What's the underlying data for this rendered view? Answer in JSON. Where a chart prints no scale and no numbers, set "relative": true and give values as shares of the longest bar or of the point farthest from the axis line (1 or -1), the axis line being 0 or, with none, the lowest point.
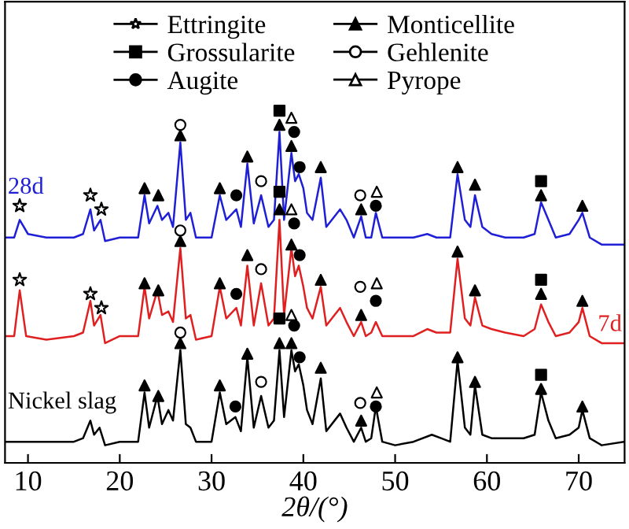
{
  "chart_data": {
    "type": "line",
    "relative": true,
    "xlabel": "2θ/(°)",
    "xlim": [
      7.5,
      75
    ],
    "xticks": [
      10,
      20,
      30,
      40,
      50,
      60,
      70
    ],
    "legend": "top",
    "grid": false,
    "line_style": "solid",
    "series": [
      {
        "name": "28d",
        "color": "#1f1fd6",
        "x": [
          7.5,
          8.5,
          9.1,
          10,
          12,
          15,
          16,
          16.8,
          17.2,
          17.9,
          18.4,
          20,
          22,
          22.7,
          23.2,
          24.1,
          24.6,
          25.3,
          25.8,
          26.6,
          27.2,
          27.7,
          28.3,
          30,
          30.9,
          31.6,
          32.7,
          33.2,
          33.9,
          34.6,
          35.4,
          36.2,
          36.8,
          37.4,
          37.9,
          38.7,
          39.1,
          39.5,
          40.0,
          40.4,
          41.0,
          41.9,
          42.5,
          44.0,
          44.7,
          45.5,
          46.3,
          46.8,
          47.4,
          47.9,
          48.6,
          50,
          52,
          53.5,
          54.5,
          56,
          56.8,
          57.6,
          58.2,
          58.7,
          59.5,
          60.5,
          62,
          64,
          65.2,
          65.9,
          66.7,
          67.5,
          69,
          70,
          70.4,
          71.2,
          72.5,
          75
        ],
        "values": [
          0.64,
          0.64,
          0.69,
          0.65,
          0.64,
          0.64,
          0.65,
          0.72,
          0.66,
          0.69,
          0.63,
          0.64,
          0.64,
          0.76,
          0.68,
          0.73,
          0.69,
          0.71,
          0.67,
          0.91,
          0.69,
          0.71,
          0.64,
          0.64,
          0.76,
          0.69,
          0.72,
          0.67,
          0.85,
          0.68,
          0.76,
          0.67,
          0.69,
          0.94,
          0.69,
          0.88,
          0.8,
          0.82,
          0.78,
          0.71,
          0.69,
          0.81,
          0.67,
          0.72,
          0.69,
          0.64,
          0.7,
          0.64,
          0.64,
          0.71,
          0.64,
          0.64,
          0.64,
          0.65,
          0.64,
          0.64,
          0.82,
          0.69,
          0.67,
          0.76,
          0.67,
          0.65,
          0.64,
          0.64,
          0.65,
          0.74,
          0.69,
          0.64,
          0.65,
          0.69,
          0.71,
          0.64,
          0.62,
          0.62
        ]
      },
      {
        "name": "7d",
        "color": "#e02020",
        "x": [
          7.5,
          8.5,
          9.1,
          9.8,
          12,
          15,
          16,
          16.8,
          17.2,
          17.9,
          18.4,
          20,
          22,
          22.7,
          23.2,
          24.1,
          24.6,
          25.3,
          25.8,
          26.6,
          27.2,
          27.7,
          28.3,
          30,
          30.9,
          31.6,
          32.7,
          33.2,
          33.9,
          34.6,
          35.4,
          36.2,
          36.8,
          37.4,
          37.9,
          38.7,
          39.1,
          39.5,
          40.0,
          40.4,
          41.0,
          41.9,
          42.5,
          44.0,
          44.7,
          45.5,
          46.3,
          46.8,
          47.4,
          47.9,
          48.6,
          50,
          52,
          53.5,
          54.5,
          56,
          56.8,
          57.6,
          58.2,
          58.7,
          59.5,
          60.5,
          62,
          64,
          65.2,
          65.9,
          66.7,
          67.5,
          69,
          70,
          70.4,
          71.2,
          72.5,
          75
        ],
        "values": [
          0.36,
          0.36,
          0.49,
          0.36,
          0.35,
          0.36,
          0.37,
          0.46,
          0.39,
          0.42,
          0.34,
          0.36,
          0.36,
          0.5,
          0.41,
          0.49,
          0.42,
          0.43,
          0.4,
          0.61,
          0.41,
          0.42,
          0.35,
          0.36,
          0.5,
          0.41,
          0.44,
          0.39,
          0.56,
          0.39,
          0.51,
          0.39,
          0.41,
          0.69,
          0.42,
          0.61,
          0.53,
          0.56,
          0.5,
          0.44,
          0.41,
          0.5,
          0.39,
          0.44,
          0.4,
          0.36,
          0.4,
          0.36,
          0.37,
          0.4,
          0.36,
          0.36,
          0.36,
          0.38,
          0.37,
          0.37,
          0.58,
          0.41,
          0.39,
          0.47,
          0.39,
          0.38,
          0.37,
          0.36,
          0.38,
          0.45,
          0.4,
          0.36,
          0.37,
          0.4,
          0.44,
          0.36,
          0.34,
          0.34
        ]
      },
      {
        "name": "Nickel slag",
        "color": "#000000",
        "x": [
          7.5,
          12,
          15,
          16,
          16.8,
          17.2,
          17.8,
          18.4,
          20,
          22,
          22.7,
          23.2,
          24.1,
          24.6,
          25.3,
          25.8,
          26.6,
          27.2,
          27.7,
          28.3,
          30,
          30.9,
          31.6,
          32.6,
          33.2,
          33.9,
          34.6,
          35.4,
          36.2,
          36.8,
          37.4,
          37.9,
          38.7,
          39.1,
          39.5,
          40.0,
          40.4,
          41.0,
          41.9,
          42.5,
          44.0,
          44.7,
          45.5,
          46.3,
          46.8,
          47.4,
          47.9,
          48.6,
          50,
          52,
          54,
          55,
          56,
          56.8,
          57.6,
          58.2,
          58.7,
          59.5,
          60.5,
          62,
          64,
          65.2,
          65.9,
          66.7,
          67.5,
          69,
          70,
          70.4,
          71.2,
          72.5,
          75
        ],
        "values": [
          0.06,
          0.06,
          0.06,
          0.07,
          0.12,
          0.08,
          0.1,
          0.05,
          0.06,
          0.06,
          0.2,
          0.1,
          0.19,
          0.11,
          0.15,
          0.12,
          0.32,
          0.11,
          0.1,
          0.06,
          0.06,
          0.2,
          0.11,
          0.13,
          0.09,
          0.3,
          0.1,
          0.19,
          0.1,
          0.12,
          0.32,
          0.13,
          0.32,
          0.26,
          0.28,
          0.22,
          0.15,
          0.11,
          0.24,
          0.09,
          0.14,
          0.1,
          0.06,
          0.1,
          0.06,
          0.07,
          0.16,
          0.06,
          0.05,
          0.06,
          0.08,
          0.07,
          0.06,
          0.29,
          0.1,
          0.08,
          0.22,
          0.08,
          0.07,
          0.07,
          0.07,
          0.08,
          0.2,
          0.12,
          0.07,
          0.08,
          0.1,
          0.15,
          0.07,
          0.05,
          0.06
        ]
      },
      {
        "name": "Ettringite",
        "type": "scatter",
        "marker": "star",
        "color": "#ffffff",
        "x": [
          9.1,
          16.8,
          18.0,
          9.1,
          16.8,
          18.0
        ],
        "values": [
          0.73,
          0.76,
          0.72,
          0.52,
          0.48,
          0.44
        ]
      },
      {
        "name": "Grossularite",
        "type": "scatter",
        "marker": "square",
        "color": "#000000",
        "x": [
          37.4,
          65.9,
          37.4,
          65.9,
          37.4,
          65.9
        ],
        "values": [
          1.0,
          0.8,
          0.77,
          0.52,
          0.41,
          0.25
        ]
      },
      {
        "name": "Augite",
        "type": "scatter",
        "marker": "circle",
        "color": "#000000",
        "x": [
          32.7,
          39.0,
          39.6,
          47.9,
          32.7,
          39.0,
          39.6,
          47.9,
          32.6,
          39.0,
          39.6,
          47.9
        ],
        "values": [
          0.76,
          0.94,
          0.84,
          0.73,
          0.48,
          0.68,
          0.59,
          0.46,
          0.16,
          0.39,
          0.3,
          0.16
        ]
      },
      {
        "name": "Monticellite",
        "type": "scatter",
        "marker": "triangle",
        "color": "#000000",
        "x": [
          22.7,
          24.2,
          26.6,
          30.9,
          33.9,
          37.4,
          38.7,
          41.9,
          46.3,
          56.8,
          58.7,
          65.9,
          70.4,
          22.7,
          24.2,
          26.6,
          30.9,
          33.9,
          37.4,
          38.7,
          41.9,
          46.3,
          56.8,
          58.7,
          65.9,
          70.4,
          22.7,
          24.2,
          26.6,
          30.9,
          33.9,
          37.4,
          38.7,
          41.9,
          46.3,
          56.8,
          58.7,
          65.9,
          70.4
        ],
        "values": [
          0.78,
          0.76,
          0.93,
          0.78,
          0.87,
          0.96,
          0.9,
          0.84,
          0.72,
          0.84,
          0.79,
          0.76,
          0.73,
          0.51,
          0.49,
          0.63,
          0.51,
          0.59,
          0.72,
          0.62,
          0.52,
          0.42,
          0.6,
          0.49,
          0.48,
          0.46,
          0.22,
          0.19,
          0.34,
          0.22,
          0.31,
          0.34,
          0.34,
          0.27,
          0.12,
          0.3,
          0.23,
          0.21,
          0.16
        ]
      },
      {
        "name": "Gehlenite",
        "type": "scatter",
        "marker": "circle",
        "color": "#ffffff",
        "x": [
          26.6,
          35.4,
          46.2,
          26.6,
          35.4,
          46.2,
          26.6,
          35.4,
          46.2
        ],
        "values": [
          0.96,
          0.8,
          0.76,
          0.66,
          0.55,
          0.5,
          0.37,
          0.23,
          0.17
        ]
      },
      {
        "name": "Pyrope",
        "type": "scatter",
        "marker": "triangle",
        "color": "#ffffff",
        "x": [
          38.7,
          48.0,
          38.7,
          48.0,
          38.7,
          48.0
        ],
        "values": [
          0.98,
          0.77,
          0.72,
          0.51,
          0.42,
          0.2
        ]
      }
    ]
  }
}
